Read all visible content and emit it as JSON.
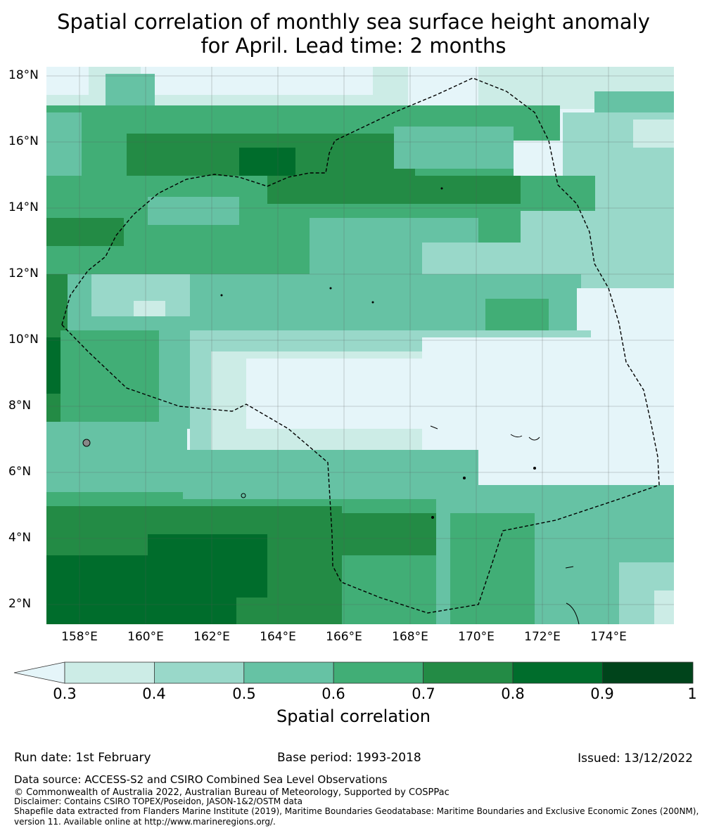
{
  "title_line1": "Spatial correlation of monthly sea surface height anomaly",
  "title_line2": "for April. Lead time: 2 months",
  "y_ticks": [
    "18°N",
    "16°N",
    "14°N",
    "12°N",
    "10°N",
    "8°N",
    "6°N",
    "4°N",
    "2°N"
  ],
  "x_ticks": [
    "158°E",
    "160°E",
    "162°E",
    "164°E",
    "166°E",
    "168°E",
    "170°E",
    "172°E",
    "174°E"
  ],
  "colorbar": {
    "label": "Spatial correlation",
    "ticks": [
      "0.3",
      "0.4",
      "0.5",
      "0.6",
      "0.7",
      "0.8",
      "0.9",
      "1"
    ],
    "colors": [
      "#e5f5f9",
      "#ccece6",
      "#99d8c9",
      "#66c2a4",
      "#41ae76",
      "#238b45",
      "#006d2c",
      "#00441b"
    ]
  },
  "footer": {
    "run_date": "Run date: 1st February",
    "base_period": "Base period: 1993-2018",
    "issued": "Issued: 13/12/2022",
    "data_source": "Data source: ACCESS-S2 and CSIRO Combined Sea Level Observations",
    "copyright": "© Commonwealth of Australia 2022, Australian Bureau of Meteorology, Supported by COSPPac",
    "disclaimer": "Disclaimer: Contains CSIRO TOPEX/Poseidon, JASON-1&2/OSTM data",
    "shapefile_1": "Shapefile data extracted from Flanders Marine Institute (2019), Maritime Boundaries Geodatabase: Maritime Boundaries and Exclusive Economic Zones (200NM),",
    "shapefile_2": "version 11. Available online at http://www.marineregions.org/."
  }
}
